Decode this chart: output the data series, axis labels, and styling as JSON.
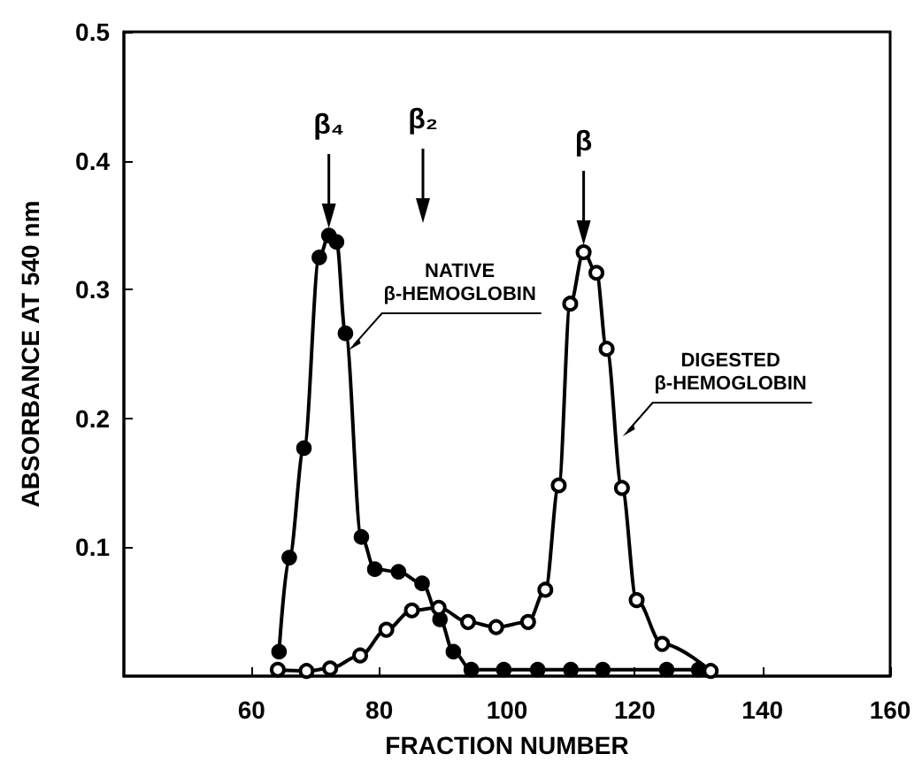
{
  "chart_data": {
    "type": "line",
    "xlabel": "FRACTION NUMBER",
    "ylabel": "ABSORBANCE AT 540 nm",
    "xlim": [
      40,
      160
    ],
    "xticks": [
      60,
      80,
      100,
      120,
      140,
      160
    ],
    "ylim": [
      0,
      0.5
    ],
    "yticks": [
      0.1,
      0.2,
      0.3,
      0.4,
      0.5
    ],
    "grid": false,
    "legend": false,
    "marker": "circle",
    "line_style": "solid",
    "series": [
      {
        "name": "NATIVE β-HEMOGLOBIN",
        "color": "#000000",
        "x": [
          64.3,
          65.9,
          68.2,
          70.6,
          72.1,
          73.3,
          74.7,
          77.2,
          79.3,
          83,
          86.7,
          89.5,
          91.6,
          94.4,
          99.5,
          104.8,
          110,
          115,
          125,
          130
        ],
        "values": [
          0.019,
          0.092,
          0.177,
          0.325,
          0.342,
          0.337,
          0.266,
          0.108,
          0.083,
          0.081,
          0.072,
          0.044,
          0.019,
          0.005,
          0.005,
          0.005,
          0.005,
          0.005,
          0.005,
          0.005
        ]
      },
      {
        "name": "DIGESTED β-HEMOGLOBIN",
        "color": "#000000",
        "x": [
          64.1,
          68.6,
          72.3,
          77,
          81.1,
          85.1,
          89.3,
          93.9,
          98.3,
          103.3,
          106,
          108.1,
          109.9,
          112,
          114,
          115.6,
          118,
          120.3,
          124.3,
          131.9
        ],
        "values": [
          0.005,
          0.004,
          0.006,
          0.016,
          0.036,
          0.051,
          0.053,
          0.042,
          0.038,
          0.042,
          0.067,
          0.148,
          0.289,
          0.329,
          0.313,
          0.254,
          0.146,
          0.059,
          0.025,
          0.004
        ]
      }
    ],
    "annotations": [
      {
        "text": "β₄",
        "x": 72.1,
        "y": 0.342
      },
      "β₂",
      {
        "text": "β",
        "x": 112,
        "y": 0.329
      }
    ]
  }
}
